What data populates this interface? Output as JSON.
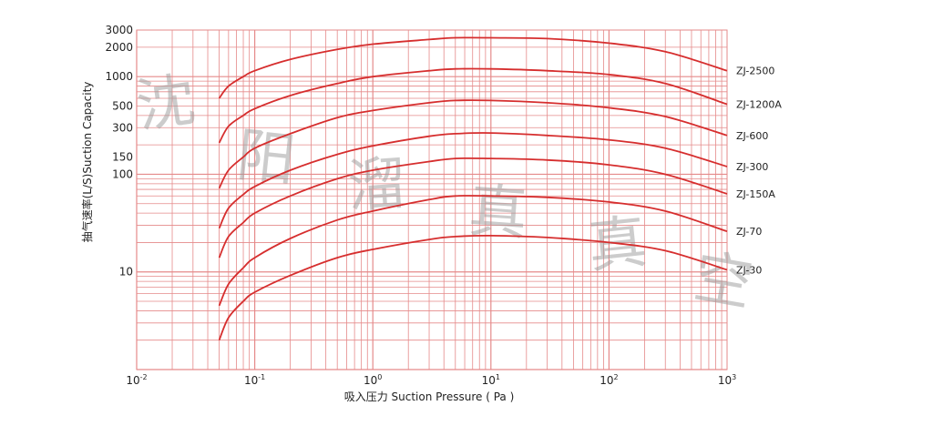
{
  "chart_data": {
    "type": "line",
    "title": "",
    "xlabel": "吸入压力 Suction Pressure ( Pa )",
    "ylabel": "抽气速率(L/S)Suction Capacity",
    "x_scale": "log",
    "y_scale": "log",
    "xlim": [
      0.01,
      1000
    ],
    "ylim": [
      1,
      3000
    ],
    "grid": true,
    "x_ticks": [
      {
        "value": 0.01,
        "base": "10",
        "exp": "-2"
      },
      {
        "value": 0.1,
        "base": "10",
        "exp": "-1"
      },
      {
        "value": 1,
        "base": "10",
        "exp": "0"
      },
      {
        "value": 10,
        "base": "10",
        "exp": "1"
      },
      {
        "value": 100,
        "base": "10",
        "exp": "2"
      },
      {
        "value": 1000,
        "base": "10",
        "exp": "3"
      }
    ],
    "y_ticks": [
      {
        "value": 3000,
        "label": "3000"
      },
      {
        "value": 2000,
        "label": "2000"
      },
      {
        "value": 1000,
        "label": "1000"
      },
      {
        "value": 500,
        "label": "500"
      },
      {
        "value": 300,
        "label": "300"
      },
      {
        "value": 150,
        "label": "150"
      },
      {
        "value": 100,
        "label": "100"
      },
      {
        "value": 10,
        "label": "10"
      }
    ],
    "series": [
      {
        "name": "ZJ-2500",
        "x": [
          0.05,
          0.06,
          0.08,
          0.1,
          0.2,
          0.5,
          1,
          3,
          5,
          10,
          30,
          100,
          300,
          1000
        ],
        "y": [
          600,
          800,
          1000,
          1150,
          1500,
          1900,
          2150,
          2400,
          2500,
          2500,
          2450,
          2200,
          1800,
          1150
        ]
      },
      {
        "name": "ZJ-1200A",
        "x": [
          0.05,
          0.06,
          0.08,
          0.1,
          0.2,
          0.5,
          1,
          3,
          5,
          10,
          30,
          100,
          300,
          1000
        ],
        "y": [
          210,
          310,
          400,
          470,
          640,
          850,
          1000,
          1150,
          1200,
          1200,
          1150,
          1050,
          850,
          520
        ]
      },
      {
        "name": "ZJ-600",
        "x": [
          0.05,
          0.06,
          0.08,
          0.1,
          0.2,
          0.5,
          1,
          3,
          5,
          10,
          30,
          100,
          300,
          1000
        ],
        "y": [
          72,
          110,
          150,
          185,
          260,
          380,
          450,
          540,
          570,
          570,
          540,
          480,
          390,
          250
        ]
      },
      {
        "name": "ZJ-300",
        "x": [
          0.05,
          0.06,
          0.08,
          0.1,
          0.2,
          0.5,
          1,
          3,
          5,
          10,
          30,
          100,
          300,
          1000
        ],
        "y": [
          28,
          45,
          62,
          75,
          110,
          160,
          195,
          245,
          260,
          265,
          250,
          225,
          185,
          120
        ]
      },
      {
        "name": "ZJ-150A",
        "x": [
          0.05,
          0.06,
          0.08,
          0.1,
          0.2,
          0.5,
          1,
          3,
          5,
          10,
          30,
          100,
          300,
          1000
        ],
        "y": [
          14,
          23,
          32,
          40,
          60,
          90,
          110,
          135,
          145,
          145,
          140,
          125,
          100,
          63
        ]
      },
      {
        "name": "ZJ-70",
        "x": [
          0.05,
          0.06,
          0.08,
          0.1,
          0.2,
          0.5,
          1,
          3,
          5,
          10,
          30,
          100,
          300,
          1000
        ],
        "y": [
          4.5,
          7.5,
          11,
          14,
          22,
          34,
          42,
          55,
          60,
          60,
          58,
          52,
          42,
          26
        ]
      },
      {
        "name": "ZJ-30",
        "x": [
          0.05,
          0.06,
          0.08,
          0.1,
          0.2,
          0.5,
          1,
          3,
          5,
          10,
          30,
          100,
          300,
          1000
        ],
        "y": [
          2.0,
          3.4,
          5.0,
          6.2,
          9.2,
          14,
          17,
          21.5,
          23,
          23.5,
          22.5,
          20,
          16.5,
          10.5
        ]
      }
    ],
    "line_color": "#d62e2e",
    "grid_color": "#e58a8a"
  },
  "watermark": {
    "chars": [
      "沈",
      "阳",
      "溜",
      "真",
      "真",
      "空"
    ],
    "color": "#9a9a9a"
  }
}
